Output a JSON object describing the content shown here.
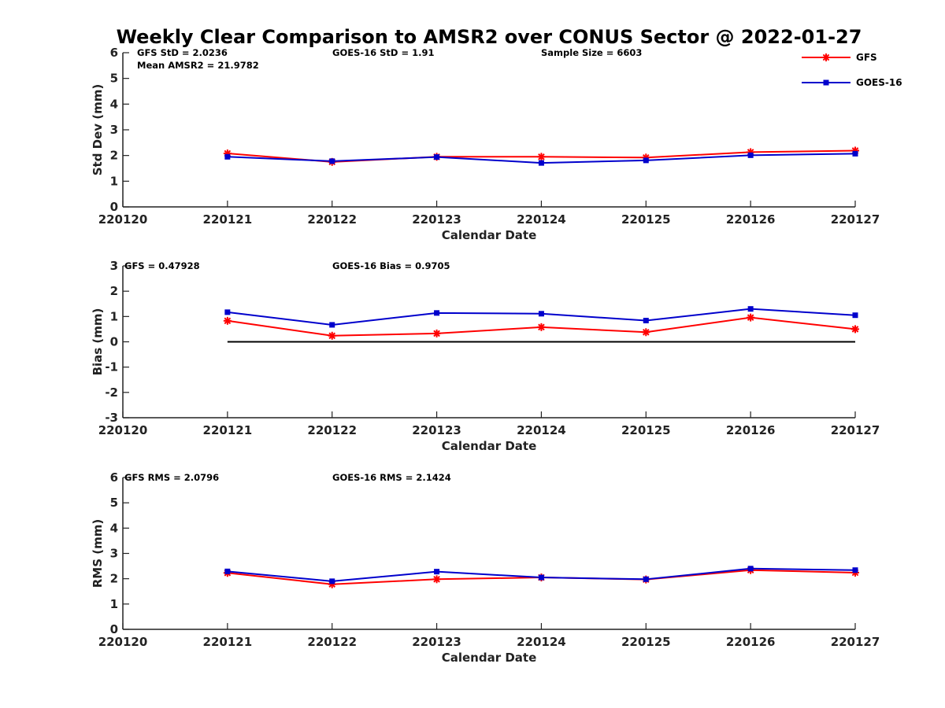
{
  "figure": {
    "title": "Weekly Clear Comparison to AMSR2 over CONUS Sector @ 2022-01-27"
  },
  "colors": {
    "gfs": "#ff0000",
    "goes16": "#0000cc",
    "reference_line": "#000000",
    "axis": "#222222"
  },
  "legend": {
    "placement": "top-right",
    "items": [
      {
        "label": "GFS",
        "marker": "asterisk",
        "color": "#ff0000"
      },
      {
        "label": "GOES-16",
        "marker": "square",
        "color": "#0000cc"
      }
    ]
  },
  "chart_data": [
    {
      "type": "line",
      "ylabel": "Std Dev (mm)",
      "xlabel": "Calendar Date",
      "categories": [
        "220120",
        "220121",
        "220122",
        "220123",
        "220124",
        "220125",
        "220126",
        "220127"
      ],
      "ylim": [
        0,
        6
      ],
      "yticks": [
        "0",
        "1",
        "2",
        "3",
        "4",
        "5",
        "6"
      ],
      "annotations": [
        "GFS StD = 2.0236",
        "Mean AMSR2 = 21.9782",
        "GOES-16 StD = 1.91",
        "Sample Size = 6603"
      ],
      "series": [
        {
          "name": "GFS",
          "x": [
            "220121",
            "220122",
            "220123",
            "220124",
            "220125",
            "220126",
            "220127"
          ],
          "values": [
            2.08,
            1.75,
            1.95,
            1.95,
            1.92,
            2.13,
            2.19
          ]
        },
        {
          "name": "GOES-16",
          "x": [
            "220121",
            "220122",
            "220123",
            "220124",
            "220125",
            "220126",
            "220127"
          ],
          "values": [
            1.95,
            1.78,
            1.94,
            1.71,
            1.81,
            2.01,
            2.07
          ]
        }
      ],
      "reference_line": null
    },
    {
      "type": "line",
      "ylabel": "Bias (mm)",
      "xlabel": "Calendar Date",
      "categories": [
        "220120",
        "220121",
        "220122",
        "220123",
        "220124",
        "220125",
        "220126",
        "220127"
      ],
      "ylim": [
        -3,
        3
      ],
      "yticks": [
        "-3",
        "-2",
        "-1",
        "0",
        "1",
        "2",
        "3"
      ],
      "annotations": [
        "GFS = 0.47928",
        "GOES-16 Bias  = 0.9705"
      ],
      "series": [
        {
          "name": "GFS",
          "x": [
            "220121",
            "220122",
            "220123",
            "220124",
            "220125",
            "220126",
            "220127"
          ],
          "values": [
            0.83,
            0.24,
            0.33,
            0.58,
            0.38,
            0.96,
            0.5
          ]
        },
        {
          "name": "GOES-16",
          "x": [
            "220121",
            "220122",
            "220123",
            "220124",
            "220125",
            "220126",
            "220127"
          ],
          "values": [
            1.17,
            0.67,
            1.14,
            1.11,
            0.84,
            1.3,
            1.05
          ]
        }
      ],
      "reference_line": {
        "y": 0,
        "x_from": "220121",
        "x_to": "220127"
      }
    },
    {
      "type": "line",
      "ylabel": "RMS (mm)",
      "xlabel": "Calendar Date",
      "categories": [
        "220120",
        "220121",
        "220122",
        "220123",
        "220124",
        "220125",
        "220126",
        "220127"
      ],
      "ylim": [
        0,
        6
      ],
      "yticks": [
        "0",
        "1",
        "2",
        "3",
        "4",
        "5",
        "6"
      ],
      "annotations": [
        "GFS RMS = 2.0796",
        "GOES-16 RMS = 2.1424"
      ],
      "series": [
        {
          "name": "GFS",
          "x": [
            "220121",
            "220122",
            "220123",
            "220124",
            "220125",
            "220126",
            "220127"
          ],
          "values": [
            2.23,
            1.78,
            1.98,
            2.05,
            1.97,
            2.34,
            2.24
          ]
        },
        {
          "name": "GOES-16",
          "x": [
            "220121",
            "220122",
            "220123",
            "220124",
            "220125",
            "220126",
            "220127"
          ],
          "values": [
            2.29,
            1.9,
            2.28,
            2.05,
            1.98,
            2.4,
            2.34
          ]
        }
      ],
      "reference_line": null
    }
  ]
}
